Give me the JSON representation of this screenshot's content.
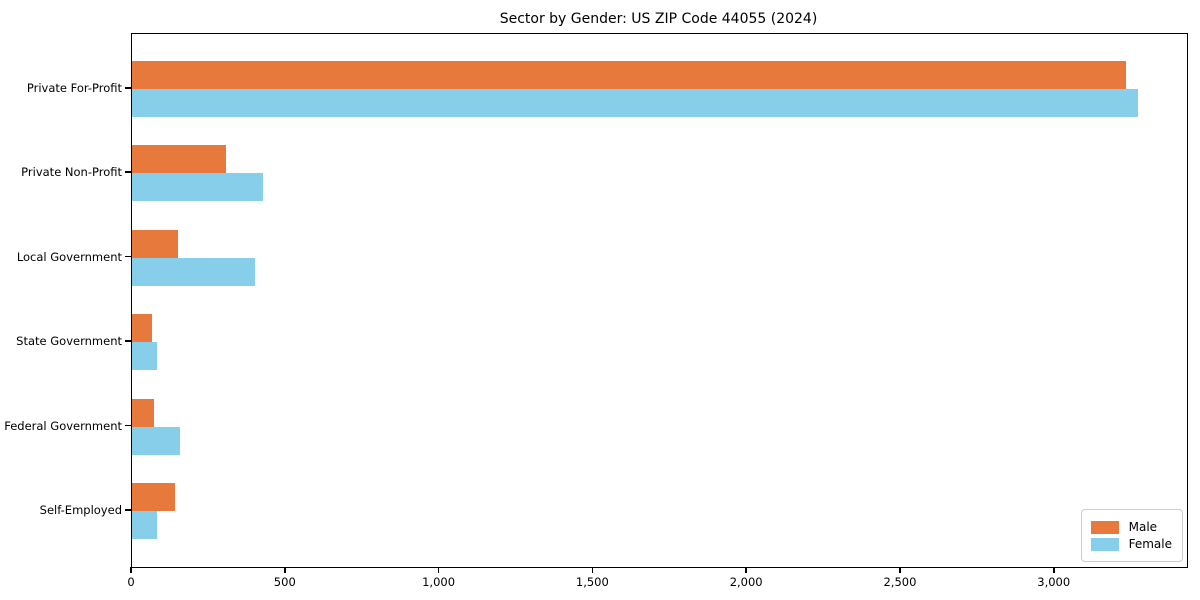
{
  "chart_data": {
    "type": "bar",
    "orientation": "horizontal",
    "title": "Sector by Gender: US ZIP Code 44055 (2024)",
    "categories": [
      "Private For-Profit",
      "Private Non-Profit",
      "Local Government",
      "State Government",
      "Federal Government",
      "Self-Employed"
    ],
    "series": [
      {
        "name": "Male",
        "color": "#e8793d",
        "values": [
          3230,
          305,
          150,
          65,
          70,
          140
        ]
      },
      {
        "name": "Female",
        "color": "#87ceeb",
        "values": [
          3270,
          425,
          400,
          80,
          155,
          80
        ]
      }
    ],
    "xlabel": "",
    "ylabel": "",
    "xlim": [
      0,
      3430
    ],
    "xticks": [
      0,
      500,
      1000,
      1500,
      2000,
      2500,
      3000
    ],
    "xtick_labels": [
      "0",
      "500",
      "1,000",
      "1,500",
      "2,000",
      "2,500",
      "3,000"
    ],
    "grid": false,
    "legend": {
      "position": "lower right",
      "entries": [
        "Male",
        "Female"
      ]
    },
    "colors": {
      "male": "#e8793d",
      "female": "#87ceeb",
      "axis": "#000000",
      "legend_border": "#cccccc",
      "background": "#ffffff"
    }
  }
}
